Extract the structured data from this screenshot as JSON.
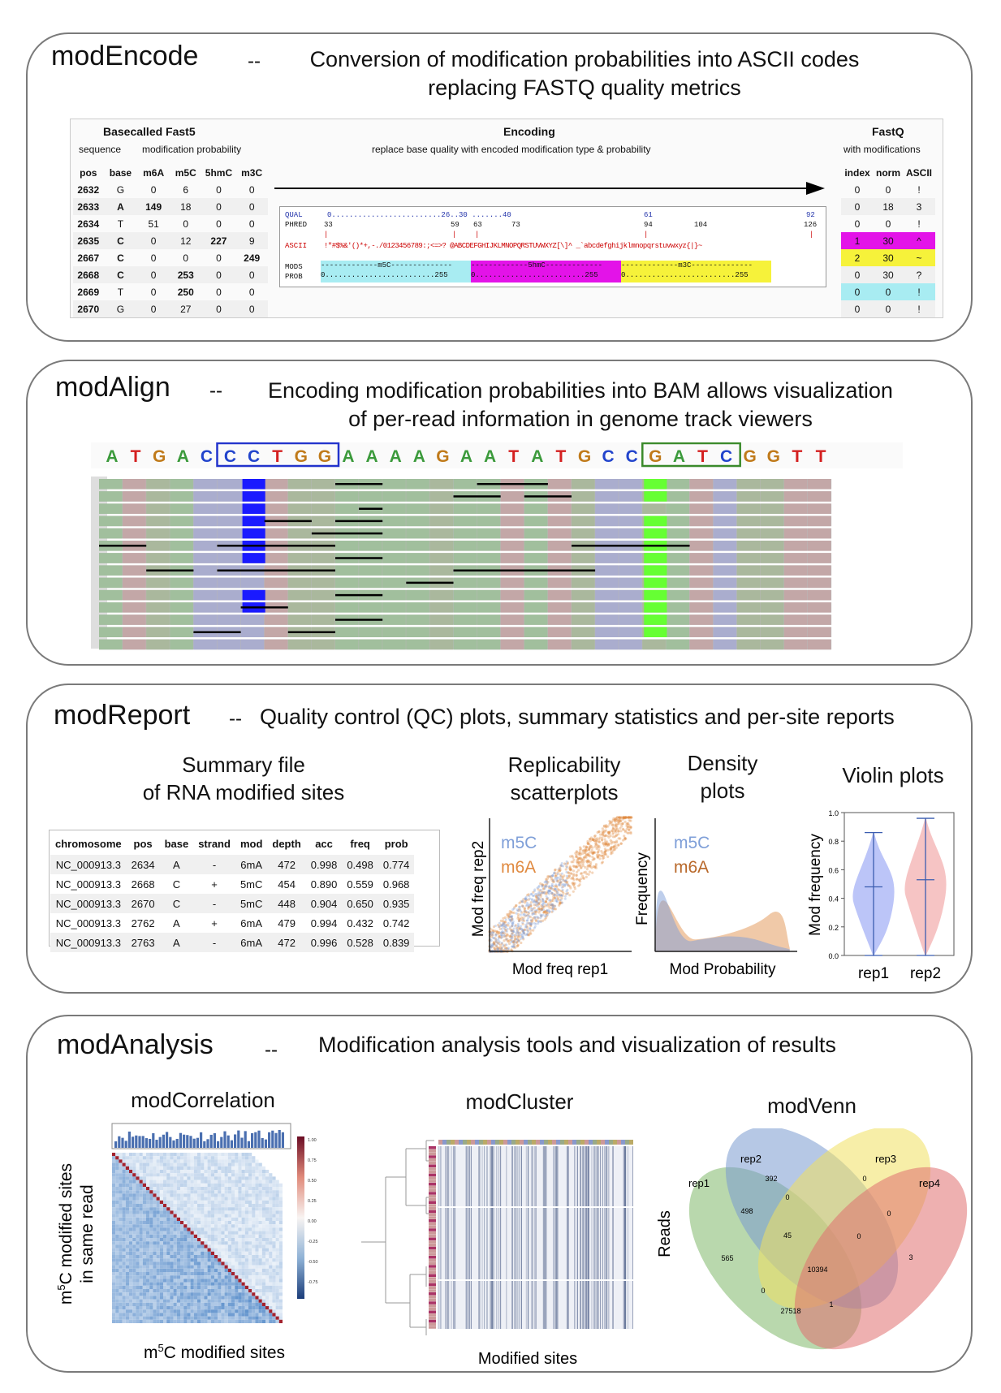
{
  "encode": {
    "title": "modEncode",
    "dash": "--",
    "desc1": "Conversion of modification probabilities into ASCII codes",
    "desc2": "replacing FASTQ quality metrics",
    "fast5_title": "Basecalled Fast5",
    "fast5_sub1": "sequence",
    "fast5_sub2": "modification probability",
    "encoding_title": "Encoding",
    "encoding_sub": "replace base quality with encoded modification type & probability",
    "fastq_title": "FastQ",
    "fastq_sub": "with modifications",
    "left_headers": [
      "pos",
      "base",
      "m6A",
      "m5C",
      "5hmC",
      "m3C"
    ],
    "right_headers": [
      "index",
      "norm",
      "ASCII"
    ],
    "rows": [
      {
        "pos": "2632",
        "base": "G",
        "m6A": "0",
        "m5C": "6",
        "hmC": "0",
        "m3C": "0",
        "index": "0",
        "norm": "0",
        "ascii": "!"
      },
      {
        "pos": "2633",
        "base": "A",
        "m6A": "149",
        "m5C": "18",
        "hmC": "0",
        "m3C": "0",
        "index": "0",
        "norm": "18",
        "ascii": "3"
      },
      {
        "pos": "2634",
        "base": "T",
        "m6A": "51",
        "m5C": "0",
        "hmC": "0",
        "m3C": "0",
        "index": "0",
        "norm": "0",
        "ascii": "!"
      },
      {
        "pos": "2635",
        "base": "C",
        "m6A": "0",
        "m5C": "12",
        "hmC": "227",
        "m3C": "9",
        "index": "1",
        "norm": "30",
        "ascii": "^"
      },
      {
        "pos": "2667",
        "base": "C",
        "m6A": "0",
        "m5C": "0",
        "hmC": "0",
        "m3C": "249",
        "index": "2",
        "norm": "30",
        "ascii": "~"
      },
      {
        "pos": "2668",
        "base": "C",
        "m6A": "0",
        "m5C": "253",
        "hmC": "0",
        "m3C": "0",
        "index": "0",
        "norm": "30",
        "ascii": "?"
      },
      {
        "pos": "2669",
        "base": "T",
        "m6A": "0",
        "m5C": "250",
        "hmC": "0",
        "m3C": "0",
        "index": "0",
        "norm": "0",
        "ascii": "!"
      },
      {
        "pos": "2670",
        "base": "G",
        "m6A": "0",
        "m5C": "27",
        "hmC": "0",
        "m3C": "0",
        "index": "0",
        "norm": "0",
        "ascii": "!"
      }
    ],
    "code_box": {
      "qual_label": "QUAL",
      "qual_line": "0.........................26..30 .......40",
      "qual_61": "61",
      "qual_92": "92",
      "phred_label": "PHRED",
      "phred_vals": [
        "33",
        "59",
        "63",
        "73",
        "94",
        "104",
        "126"
      ],
      "ascii_label": "ASCII",
      "ascii_line": "!\"#$%&'()*+,-./0123456789:;<=>? @ABCDEFGHIJKLMNOPQRSTUVWXYZ[\\]^ _`abcdefghijklmnopqrstuvwxyz{|}~",
      "mods_label": "MODS",
      "mod_m5C": "-------------m5C--------------",
      "mod_5hmC": "-------------5hmC-------------",
      "mod_m3C": "-------------m3C--------------",
      "prob_label": "PROB",
      "prob_seg": "0.........................255"
    }
  },
  "align": {
    "title": "modAlign",
    "dash": "--",
    "desc1": "Encoding modification probabilities into BAM allows visualization",
    "desc2": "of per-read information in genome track viewers",
    "sequence": [
      "A",
      "T",
      "G",
      "A",
      "C",
      "C",
      "C",
      "T",
      "G",
      "G",
      "A",
      "A",
      "A",
      "A",
      "G",
      "A",
      "A",
      "T",
      "A",
      "T",
      "G",
      "C",
      "C",
      "G",
      "A",
      "T",
      "C",
      "G",
      "G",
      "T",
      "T"
    ],
    "colors": {
      "A": "#3b9a3b",
      "T": "#d42020",
      "G": "#c07a1a",
      "C": "#2244cc"
    },
    "box1_color": "#2233cc",
    "box2_color": "#3a8a2a",
    "mod_blue": "#1a1aff",
    "mod_green": "#66ff33"
  },
  "report": {
    "title": "modReport",
    "dash": "--",
    "desc": "Quality control (QC) plots, summary statistics and per-site reports",
    "summary_title1": "Summary file",
    "summary_title2": "of RNA modified sites",
    "table_headers": [
      "chromosome",
      "pos",
      "base",
      "strand",
      "mod",
      "depth",
      "acc",
      "freq",
      "prob"
    ],
    "table_rows": [
      [
        "NC_000913.3",
        "2634",
        "A",
        "-",
        "6mA",
        "472",
        "0.998",
        "0.498",
        "0.774"
      ],
      [
        "NC_000913.3",
        "2668",
        "C",
        "+",
        "5mC",
        "454",
        "0.890",
        "0.559",
        "0.968"
      ],
      [
        "NC_000913.3",
        "2670",
        "C",
        "-",
        "5mC",
        "448",
        "0.904",
        "0.650",
        "0.935"
      ],
      [
        "NC_000913.3",
        "2762",
        "A",
        "+",
        "6mA",
        "479",
        "0.994",
        "0.432",
        "0.742"
      ],
      [
        "NC_000913.3",
        "2763",
        "A",
        "-",
        "6mA",
        "472",
        "0.996",
        "0.528",
        "0.839"
      ]
    ],
    "scatter_title1": "Replicability",
    "scatter_title2": "scatterplots",
    "scatter_xlabel": "Mod freq rep1",
    "scatter_ylabel": "Mod freq rep2",
    "legend_m5C": "m5C",
    "legend_m6A": "m6A",
    "density_title1": "Density",
    "density_title2": "plots",
    "density_xlabel": "Mod Probability",
    "density_ylabel": "Frequency",
    "violin_title": "Violin plots",
    "violin_ylabel": "Mod frequency",
    "violin_xticks": [
      "rep1",
      "rep2"
    ],
    "violin_yticks": [
      "0.0",
      "0.2",
      "0.4",
      "0.6",
      "0.8",
      "1.0"
    ],
    "color_m5C": "#7f9fd8",
    "color_m6A": "#e08a40"
  },
  "analysis": {
    "title": "modAnalysis",
    "dash": "--",
    "desc": "Modification analysis tools and visualization of results",
    "corr_title": "modCorrelation",
    "corr_ylabel1": "m",
    "corr_ylabel_sup": "5",
    "corr_ylabel2": "C modified sites",
    "corr_ylabel3": "in same read",
    "corr_xlabel1": "m",
    "corr_xlabel_sup": "5",
    "corr_xlabel2": "C modified sites",
    "colorbar_ticks": [
      "1.00",
      "0.75",
      "0.50",
      "0.25",
      "0.00",
      "-0.25",
      "-0.50",
      "-0.75"
    ],
    "cluster_title": "modCluster",
    "cluster_xlabel": "Modified sites",
    "cluster_ylabel": "Reads",
    "venn_title": "modVenn",
    "venn_labels": [
      "rep1",
      "rep2",
      "rep3",
      "rep4"
    ],
    "venn_values": [
      "392",
      "0",
      "498",
      "0",
      "45",
      "0",
      "565",
      "3",
      "10394",
      "0",
      "0",
      "27518",
      "1"
    ]
  }
}
